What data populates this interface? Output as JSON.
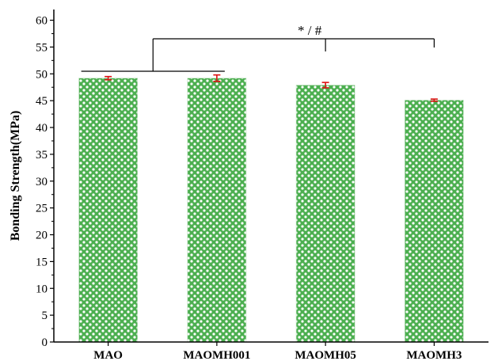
{
  "chart_data": {
    "type": "bar",
    "categories": [
      "MAO",
      "MAOMH001",
      "MAOMH05",
      "MAOMH3"
    ],
    "values": [
      49.2,
      49.2,
      47.9,
      45.1
    ],
    "errors": [
      0.3,
      0.6,
      0.5,
      0.2
    ],
    "ylabel": "Bonding Strength(MPa)",
    "xlabel": "",
    "ylim": [
      0,
      62
    ],
    "yticks": [
      0,
      5,
      10,
      15,
      20,
      25,
      30,
      35,
      40,
      45,
      50,
      55,
      60
    ],
    "significance_label": "* / #",
    "grid": false
  },
  "colors": {
    "bar_fill": "#4caf50",
    "bar_pattern": "#ffffff",
    "error_bar": "#dd1111",
    "axis": "#000000"
  }
}
